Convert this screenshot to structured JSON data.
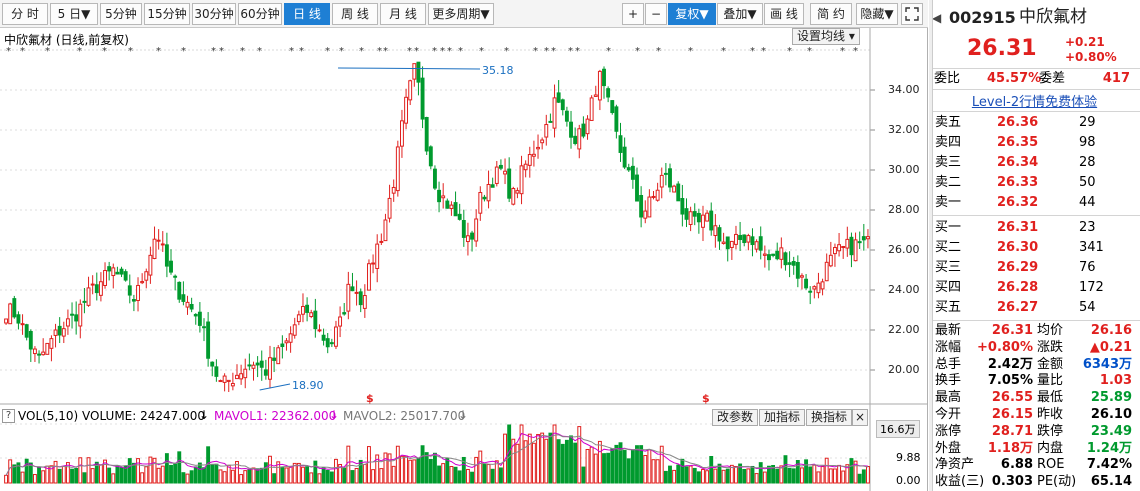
{
  "toolbar": {
    "tabs": [
      "分 时",
      "5 日",
      "5分钟",
      "15分钟",
      "30分钟",
      "60分钟",
      "日 线",
      "周 线",
      "月 线",
      "更多周期"
    ],
    "active_tab": 6,
    "right_buttons": [
      "+",
      "−",
      "复权",
      "叠加",
      "画 线",
      "简 约",
      "隐藏"
    ]
  },
  "chart": {
    "title": "中欣氟材 (日线,前复权)",
    "settings_button": "设置均线",
    "y_ticks": [
      "34.00",
      "32.00",
      "30.00",
      "28.00",
      "26.00",
      "24.00",
      "22.00",
      "20.00"
    ],
    "high_label": "35.18",
    "low_label": "18.90",
    "marker_label": "$",
    "volume": {
      "question_icon": "?",
      "indicator": "VOL(5,10)",
      "volume_text": "VOLUME: 24247.000",
      "mavol1_text": "MAVOL1: 22362.000",
      "mavol2_text": "MAVOL2: 25017.700",
      "buttons": [
        "改参数",
        "加指标",
        "换指标",
        "×"
      ],
      "y_ticks": [
        "16.6万",
        "9.88",
        "0.00"
      ]
    }
  },
  "chart_data": {
    "type": "candlestick",
    "title": "中欣氟材 (日线,前复权)",
    "ylim": [
      18.9,
      35.18
    ],
    "y_ticks": [
      20,
      22,
      24,
      26,
      28,
      30,
      32,
      34
    ],
    "high": 35.18,
    "low": 18.9,
    "up_color": "#e0201e",
    "down_color": "#009a2e",
    "mavol1_color": "#d000d0",
    "mavol2_color": "#888888",
    "volume_ylim": [
      0,
      166000
    ],
    "volume_ticks": [
      "16.6万",
      "9.88",
      "0.00"
    ],
    "trend_points": [
      23.0,
      22.8,
      21.5,
      20.5,
      21.3,
      22.0,
      22.5,
      23.2,
      24.0,
      24.5,
      25.0,
      24.2,
      23.5,
      25.2,
      27.0,
      25.0,
      24.0,
      23.2,
      22.5,
      20.5,
      19.2,
      19.6,
      20.1,
      20.4,
      19.9,
      20.6,
      21.3,
      22.5,
      23.0,
      22.0,
      21.2,
      22.3,
      24.5,
      23.5,
      25.5,
      27.0,
      29.5,
      33.0,
      35.18,
      31.5,
      29.0,
      28.3,
      27.5,
      26.2,
      28.5,
      29.5,
      30.0,
      28.6,
      30.0,
      31.0,
      32.0,
      33.5,
      32.5,
      31.5,
      32.4,
      34.8,
      33.0,
      31.0,
      29.5,
      27.8,
      28.5,
      29.8,
      29.0,
      27.8,
      27.2,
      27.5,
      27.0,
      26.0,
      26.5,
      26.8,
      26.0,
      25.4,
      25.9,
      25.3,
      24.4,
      24.0,
      25.0,
      25.8,
      26.1,
      26.3,
      26.31
    ]
  },
  "quote": {
    "code": "002915",
    "name": "中欣氟材",
    "price": "26.31",
    "change": "+0.21",
    "change_pct": "+0.80%",
    "wb_label": "委比",
    "wb_value": "45.57%",
    "wc_label": "委差",
    "wc_value": "417",
    "level2_link": "Level-2行情免费体验",
    "asks": [
      {
        "label": "卖五",
        "price": "26.36",
        "vol": "29"
      },
      {
        "label": "卖四",
        "price": "26.35",
        "vol": "98"
      },
      {
        "label": "卖三",
        "price": "26.34",
        "vol": "28"
      },
      {
        "label": "卖二",
        "price": "26.33",
        "vol": "50"
      },
      {
        "label": "卖一",
        "price": "26.32",
        "vol": "44"
      }
    ],
    "bids": [
      {
        "label": "买一",
        "price": "26.31",
        "vol": "23"
      },
      {
        "label": "买二",
        "price": "26.30",
        "vol": "341"
      },
      {
        "label": "买三",
        "price": "26.29",
        "vol": "76"
      },
      {
        "label": "买四",
        "price": "26.28",
        "vol": "172"
      },
      {
        "label": "买五",
        "price": "26.27",
        "vol": "54"
      }
    ],
    "stats": [
      {
        "l1": "最新",
        "v1": "26.31",
        "c1": "red",
        "l2": "均价",
        "v2": "26.16",
        "c2": "red"
      },
      {
        "l1": "涨幅",
        "v1": "+0.80%",
        "c1": "red",
        "l2": "涨跌",
        "v2": "▲0.21",
        "c2": "red"
      },
      {
        "l1": "总手",
        "v1": "2.42万",
        "c1": "",
        "l2": "金额",
        "v2": "6343万",
        "c2": "blue"
      },
      {
        "l1": "换手",
        "v1": "7.05%",
        "c1": "",
        "l2": "量比",
        "v2": "1.03",
        "c2": "red"
      },
      {
        "l1": "最高",
        "v1": "26.55",
        "c1": "red",
        "l2": "最低",
        "v2": "25.89",
        "c2": "green"
      },
      {
        "l1": "今开",
        "v1": "26.15",
        "c1": "red",
        "l2": "昨收",
        "v2": "26.10",
        "c2": ""
      },
      {
        "l1": "涨停",
        "v1": "28.71",
        "c1": "red",
        "l2": "跌停",
        "v2": "23.49",
        "c2": "green"
      },
      {
        "l1": "外盘",
        "v1": "1.18万",
        "c1": "red",
        "l2": "内盘",
        "v2": "1.24万",
        "c2": "green"
      },
      {
        "l1": "净资产",
        "v1": "6.88",
        "c1": "",
        "l2": "ROE",
        "v2": "7.42%",
        "c2": ""
      },
      {
        "l1": "收益(三)",
        "v1": "0.303",
        "c1": "",
        "l2": "PE(动)",
        "v2": "65.14",
        "c2": ""
      }
    ]
  }
}
